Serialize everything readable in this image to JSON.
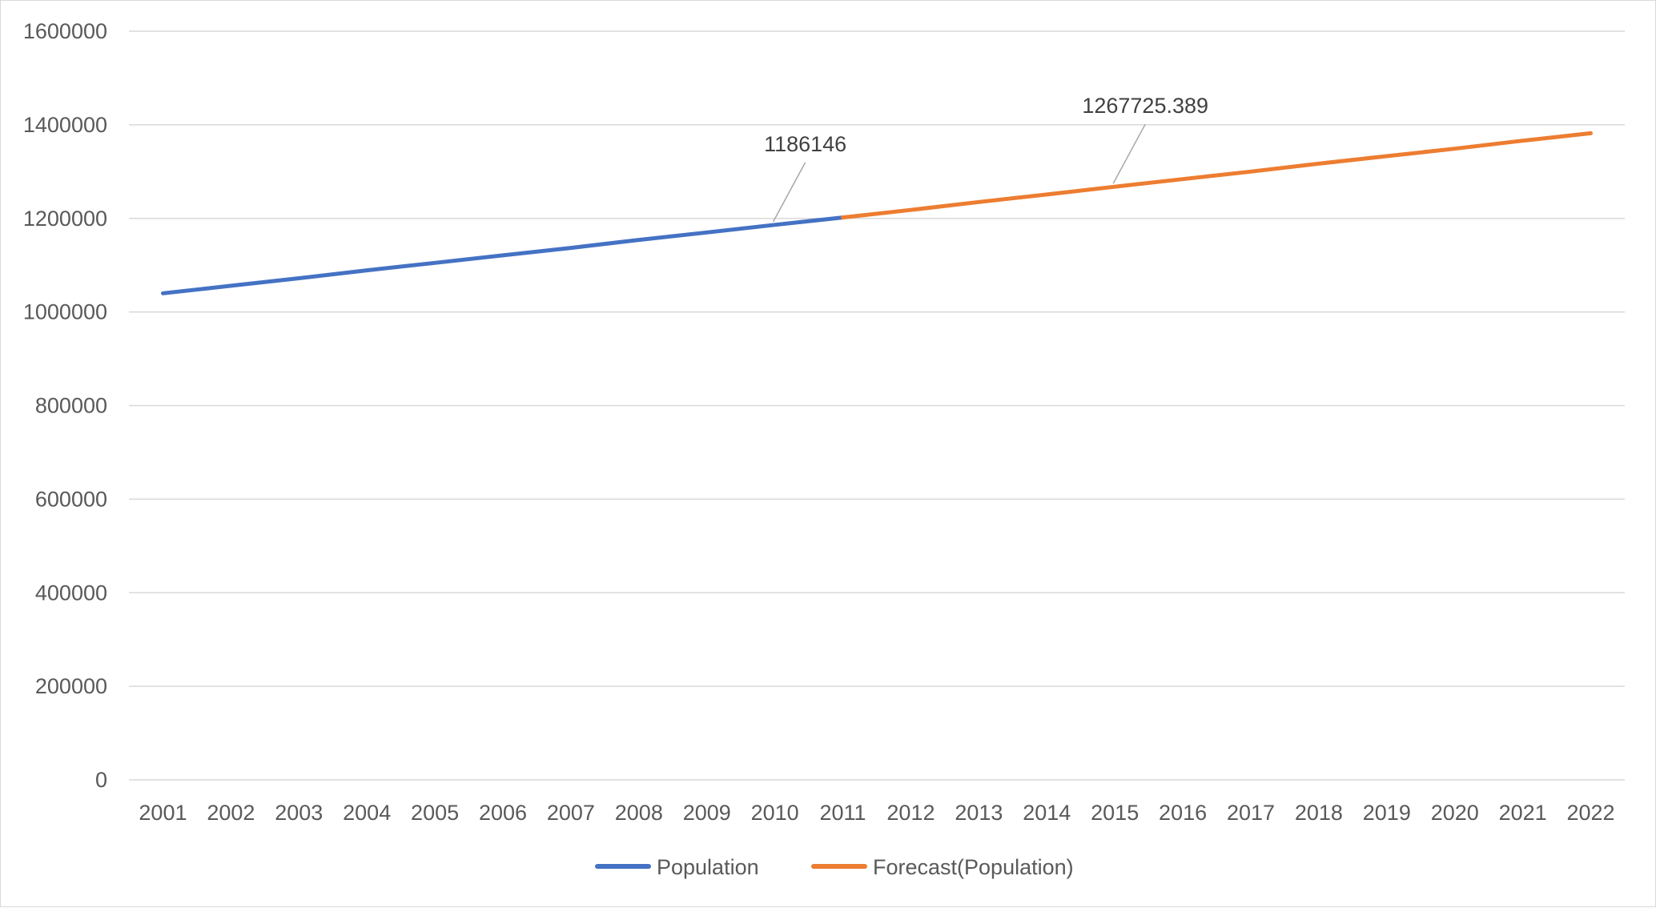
{
  "chart_data": {
    "type": "line",
    "title": "",
    "xlabel": "",
    "ylabel": "",
    "categories": [
      "2001",
      "2002",
      "2003",
      "2004",
      "2005",
      "2006",
      "2007",
      "2008",
      "2009",
      "2010",
      "2011",
      "2012",
      "2013",
      "2014",
      "2015",
      "2016",
      "2017",
      "2018",
      "2019",
      "2020",
      "2021",
      "2022"
    ],
    "ylim": [
      0,
      1600000
    ],
    "yticks": [
      "0",
      "200000",
      "400000",
      "600000",
      "800000",
      "1000000",
      "1200000",
      "1400000",
      "1600000"
    ],
    "grid": true,
    "legend_position": "bottom",
    "series": [
      {
        "name": "Population",
        "color": "#4472C4",
        "x": [
          "2001",
          "2002",
          "2003",
          "2004",
          "2005",
          "2006",
          "2007",
          "2008",
          "2009",
          "2010",
          "2011"
        ],
        "values": [
          1040000,
          1056000,
          1072000,
          1089000,
          1105000,
          1121000,
          1137000,
          1154000,
          1170000,
          1186146,
          1202000
        ]
      },
      {
        "name": "Forecast(Population)",
        "color": "#ED7D31",
        "x": [
          "2011",
          "2012",
          "2013",
          "2014",
          "2015",
          "2016",
          "2017",
          "2018",
          "2019",
          "2020",
          "2021",
          "2022"
        ],
        "values": [
          1202000,
          1218000,
          1235000,
          1251000,
          1267725.389,
          1284000,
          1300000,
          1317000,
          1333000,
          1349000,
          1366000,
          1382000
        ]
      }
    ],
    "annotations": [
      {
        "text": "1186146",
        "series": "Population",
        "x": "2010",
        "value": 1186146
      },
      {
        "text": "1267725.389",
        "series": "Forecast(Population)",
        "x": "2015",
        "value": 1267725.389
      }
    ],
    "colors": {
      "gridline": "#d9d9d9",
      "tick_text": "#595959",
      "label_text": "#404040",
      "leader_line": "#a6a6a6"
    }
  }
}
